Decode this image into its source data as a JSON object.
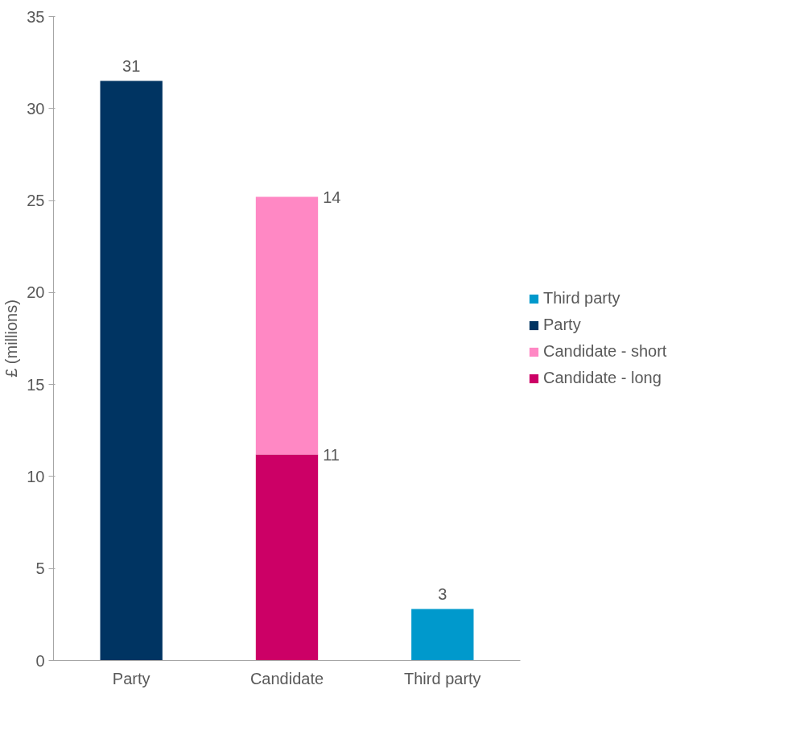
{
  "chart_data": {
    "type": "bar",
    "stacked": true,
    "ylabel": "£ (millions)",
    "categories": [
      "Party",
      "Candidate",
      "Third party"
    ],
    "ylim": [
      0,
      35
    ],
    "yticks": [
      0,
      5,
      10,
      15,
      20,
      25,
      30,
      35
    ],
    "grid": false,
    "legend": "right",
    "series": [
      {
        "name": "Candidate - long",
        "color": "#cc0066",
        "values": [
          null,
          11.2,
          null
        ],
        "value_labels": [
          null,
          "11",
          null
        ]
      },
      {
        "name": "Candidate - short",
        "color": "#ff88c4",
        "values": [
          null,
          14.0,
          null
        ],
        "value_labels": [
          null,
          "14",
          null
        ]
      },
      {
        "name": "Party",
        "color": "#003462",
        "values": [
          31.5,
          null,
          null
        ],
        "value_labels": [
          "31",
          null,
          null
        ]
      },
      {
        "name": "Third party",
        "color": "#0099cc",
        "values": [
          null,
          null,
          2.8
        ],
        "value_labels": [
          null,
          null,
          "3"
        ]
      }
    ]
  }
}
